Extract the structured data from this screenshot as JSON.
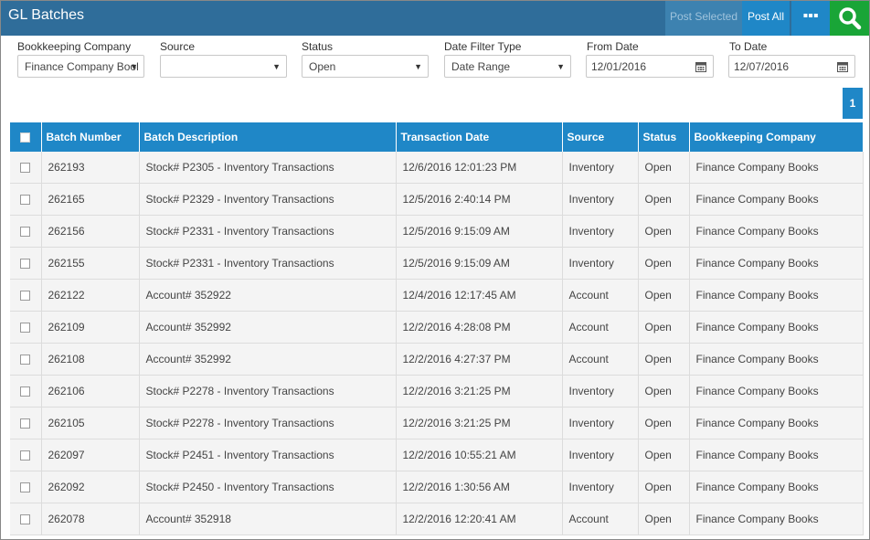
{
  "header": {
    "title": "GL Batches",
    "post_selected_label": "Post Selected",
    "post_all_label": "Post All",
    "more_label": "▪▪▪"
  },
  "filters": {
    "bookkeeping_company": {
      "label": "Bookkeeping Company",
      "value": "Finance Company Bool"
    },
    "source": {
      "label": "Source",
      "value": ""
    },
    "status": {
      "label": "Status",
      "value": "Open"
    },
    "date_filter_type": {
      "label": "Date Filter Type",
      "value": "Date Range"
    },
    "from_date": {
      "label": "From Date",
      "value": "12/01/2016"
    },
    "to_date": {
      "label": "To Date",
      "value": "12/07/2016"
    }
  },
  "pagination": {
    "current_page": "1"
  },
  "table": {
    "columns": [
      "Batch Number",
      "Batch Description",
      "Transaction Date",
      "Source",
      "Status",
      "Bookkeeping Company"
    ],
    "rows": [
      [
        "262193",
        "Stock# P2305 - Inventory Transactions",
        "12/6/2016 12:01:23 PM",
        "Inventory",
        "Open",
        "Finance Company Books"
      ],
      [
        "262165",
        "Stock# P2329 - Inventory Transactions",
        "12/5/2016 2:40:14 PM",
        "Inventory",
        "Open",
        "Finance Company Books"
      ],
      [
        "262156",
        "Stock# P2331 - Inventory Transactions",
        "12/5/2016 9:15:09 AM",
        "Inventory",
        "Open",
        "Finance Company Books"
      ],
      [
        "262155",
        "Stock# P2331 - Inventory Transactions",
        "12/5/2016 9:15:09 AM",
        "Inventory",
        "Open",
        "Finance Company Books"
      ],
      [
        "262122",
        "Account# 352922",
        "12/4/2016 12:17:45 AM",
        "Account",
        "Open",
        "Finance Company Books"
      ],
      [
        "262109",
        "Account# 352992",
        "12/2/2016 4:28:08 PM",
        "Account",
        "Open",
        "Finance Company Books"
      ],
      [
        "262108",
        "Account# 352992",
        "12/2/2016 4:27:37 PM",
        "Account",
        "Open",
        "Finance Company Books"
      ],
      [
        "262106",
        "Stock# P2278 - Inventory Transactions",
        "12/2/2016 3:21:25 PM",
        "Inventory",
        "Open",
        "Finance Company Books"
      ],
      [
        "262105",
        "Stock# P2278 - Inventory Transactions",
        "12/2/2016 3:21:25 PM",
        "Inventory",
        "Open",
        "Finance Company Books"
      ],
      [
        "262097",
        "Stock# P2451 - Inventory Transactions",
        "12/2/2016 10:55:21 AM",
        "Inventory",
        "Open",
        "Finance Company Books"
      ],
      [
        "262092",
        "Stock# P2450 - Inventory Transactions",
        "12/2/2016 1:30:56 AM",
        "Inventory",
        "Open",
        "Finance Company Books"
      ],
      [
        "262078",
        "Account# 352918",
        "12/2/2016 12:20:41 AM",
        "Account",
        "Open",
        "Finance Company Books"
      ]
    ]
  },
  "colors": {
    "topbar": "#2f6d9a",
    "accent": "#1f87c7",
    "search": "#19a537"
  },
  "icons": {
    "search": "search-icon",
    "calendar": "calendar-icon",
    "more": "more-icon"
  }
}
